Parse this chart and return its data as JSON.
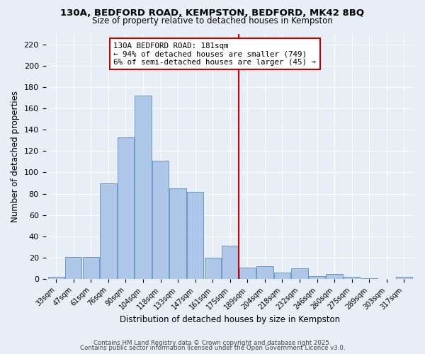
{
  "title1": "130A, BEDFORD ROAD, KEMPSTON, BEDFORD, MK42 8BQ",
  "title2": "Size of property relative to detached houses in Kempston",
  "xlabel": "Distribution of detached houses by size in Kempston",
  "ylabel": "Number of detached properties",
  "categories": [
    "33sqm",
    "47sqm",
    "61sqm",
    "76sqm",
    "90sqm",
    "104sqm",
    "118sqm",
    "133sqm",
    "147sqm",
    "161sqm",
    "175sqm",
    "189sqm",
    "204sqm",
    "218sqm",
    "232sqm",
    "246sqm",
    "260sqm",
    "275sqm",
    "289sqm",
    "303sqm",
    "317sqm"
  ],
  "values": [
    2,
    21,
    21,
    90,
    133,
    172,
    111,
    85,
    82,
    20,
    31,
    11,
    12,
    6,
    10,
    3,
    5,
    2,
    1,
    0,
    2
  ],
  "bar_color": "#aec6e8",
  "bar_edge_color": "#5a8fc0",
  "vline_x": 10.5,
  "vline_color": "#cc0000",
  "annotation_title": "130A BEDFORD ROAD: 181sqm",
  "annotation_line1": "← 94% of detached houses are smaller (749)",
  "annotation_line2": "6% of semi-detached houses are larger (45) →",
  "annotation_box_color": "#cc0000",
  "background_color": "#e8eef5",
  "grid_color": "#ffffff",
  "ylim": [
    0,
    230
  ],
  "yticks": [
    0,
    20,
    40,
    60,
    80,
    100,
    120,
    140,
    160,
    180,
    200,
    220
  ],
  "footer1": "Contains HM Land Registry data © Crown copyright and database right 2025.",
  "footer2": "Contains public sector information licensed under the Open Government Licence v3.0."
}
